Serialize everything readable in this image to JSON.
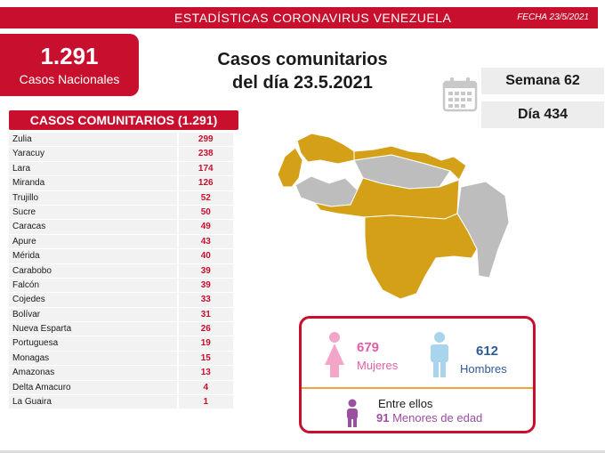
{
  "header": {
    "title": "ESTADÍSTICAS CORONAVIRUS VENEZUELA",
    "date": "FECHA 23/5/2021"
  },
  "national": {
    "count": "1.291",
    "label": "Casos Nacionales"
  },
  "headline": {
    "line1": "Casos comunitarios",
    "line2": "del día 23.5.2021"
  },
  "calendar": {
    "icon": "calendar-icon",
    "week": "Semana 62",
    "day": "Día 434"
  },
  "table": {
    "header": "CASOS COMUNITARIOS (1.291)",
    "rows": [
      {
        "state": "Zulia",
        "cases": "299"
      },
      {
        "state": "Yaracuy",
        "cases": "238"
      },
      {
        "state": "Lara",
        "cases": "174"
      },
      {
        "state": "Miranda",
        "cases": "126"
      },
      {
        "state": "Trujillo",
        "cases": "52"
      },
      {
        "state": "Sucre",
        "cases": "50"
      },
      {
        "state": "Caracas",
        "cases": "49"
      },
      {
        "state": "Apure",
        "cases": "43"
      },
      {
        "state": "Mérida",
        "cases": "40"
      },
      {
        "state": "Carabobo",
        "cases": "39"
      },
      {
        "state": "Falcón",
        "cases": "39"
      },
      {
        "state": "Cojedes",
        "cases": "33"
      },
      {
        "state": "Bolívar",
        "cases": "31"
      },
      {
        "state": "Nueva Esparta",
        "cases": "26"
      },
      {
        "state": "Portuguesa",
        "cases": "19"
      },
      {
        "state": "Monagas",
        "cases": "15"
      },
      {
        "state": "Amazonas",
        "cases": "13"
      },
      {
        "state": "Delta Amacuro",
        "cases": "4"
      },
      {
        "state": "La Guaira",
        "cases": "1"
      }
    ]
  },
  "map": {
    "affected_color": "#d4a017",
    "unaffected_color": "#bdbdbd"
  },
  "gender": {
    "women_count": "679",
    "women_label": "Mujeres",
    "women_color": "#e05fa8",
    "men_count": "612",
    "men_label": "Hombres",
    "men_color": "#2e5c9a",
    "minors_intro": "Entre ellos",
    "minors_count": "91",
    "minors_label": "Menores de edad",
    "minors_color": "#9b4fa0"
  }
}
